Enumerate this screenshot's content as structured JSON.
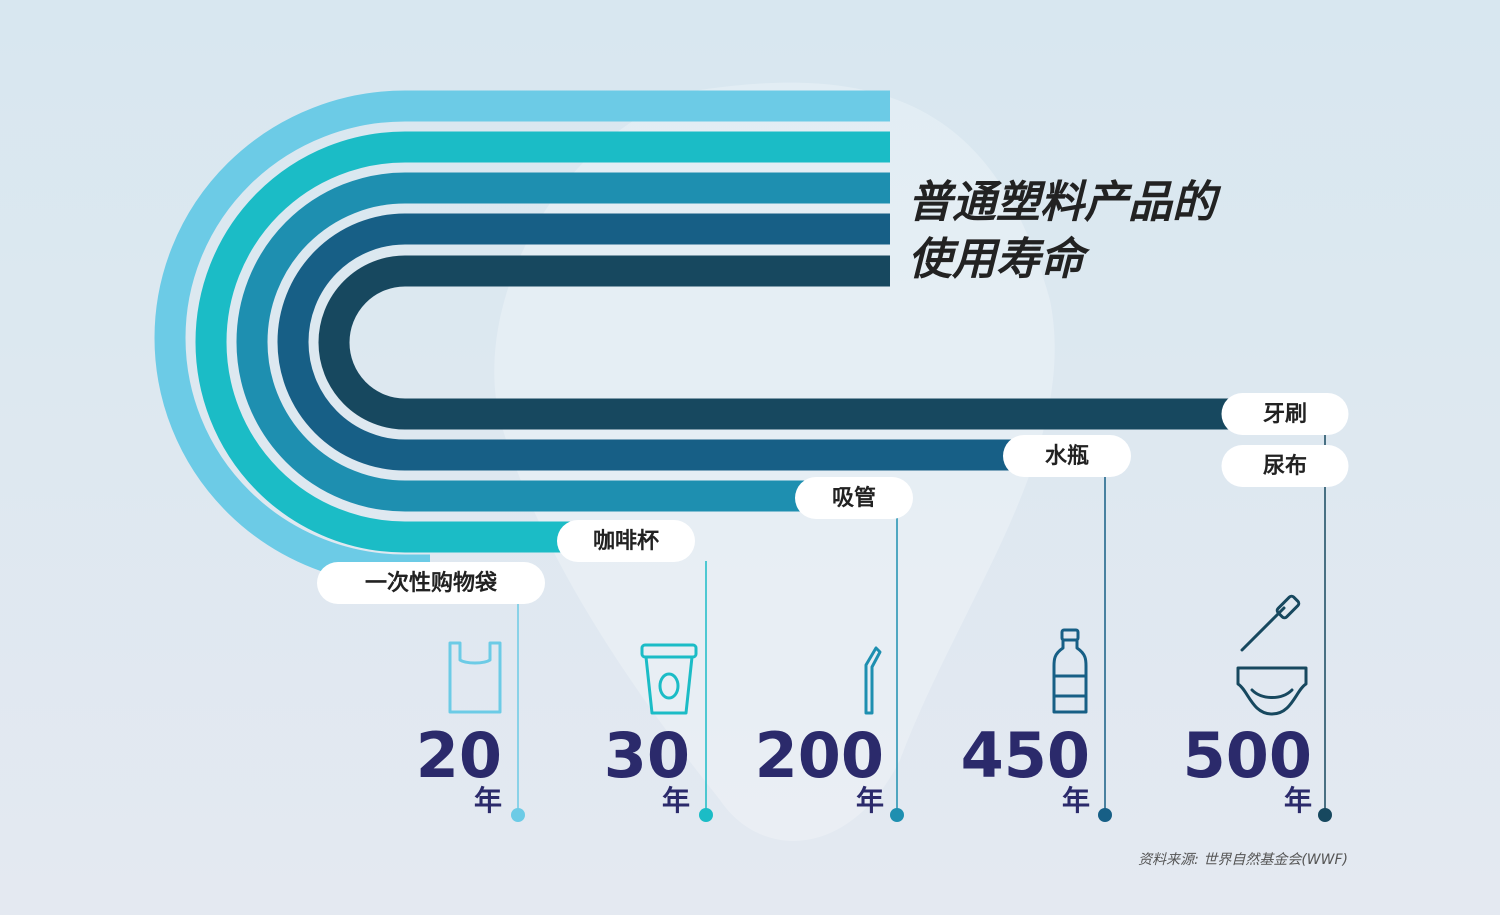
{
  "title": {
    "line1": "普通塑料产品的",
    "line2": "使用寿命"
  },
  "unit": "年",
  "items": [
    {
      "labels": [
        "一次性购物袋"
      ],
      "years": 20
    },
    {
      "labels": [
        "咖啡杯"
      ],
      "years": 30
    },
    {
      "labels": [
        "吸管"
      ],
      "years": 200
    },
    {
      "labels": [
        "水瓶"
      ],
      "years": 450
    },
    {
      "labels": [
        "牙刷",
        "尿布"
      ],
      "years": 500
    }
  ],
  "source": "资料来源: 世界自然基金会(WWF)"
}
